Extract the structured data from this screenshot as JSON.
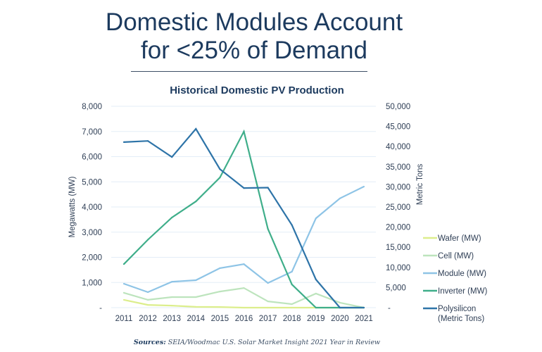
{
  "header": {
    "title_line1": "Domestic Modules Account",
    "title_line2": "for <25% of Demand"
  },
  "source": {
    "label": "Sources:",
    "text": "SEIA/Woodmac U.S. Solar Market Insight 2021 Year in Review"
  },
  "chart_data": {
    "type": "line",
    "title": "Historical Domestic PV Production",
    "xlabel": "",
    "ylabel": "Megawatts (MW)",
    "y2label": "Metric Tons",
    "x": [
      "2011",
      "2012",
      "2013",
      "2014",
      "2015",
      "2016",
      "2017",
      "2018",
      "2019",
      "2020",
      "2021"
    ],
    "ylim": [
      0,
      8000
    ],
    "y2lim": [
      0,
      50000
    ],
    "yticks": [
      0,
      1000,
      2000,
      3000,
      4000,
      5000,
      6000,
      7000,
      8000
    ],
    "ytick_labels": [
      "-",
      "1,000",
      "2,000",
      "3,000",
      "4,000",
      "5,000",
      "6,000",
      "7,000",
      "8,000"
    ],
    "y2ticks": [
      0,
      5000,
      10000,
      15000,
      20000,
      25000,
      30000,
      35000,
      40000,
      45000,
      50000
    ],
    "y2tick_labels": [
      "-",
      "5,000",
      "10,000",
      "15,000",
      "20,000",
      "25,000",
      "30,000",
      "35,000",
      "40,000",
      "45,000",
      "50,000"
    ],
    "grid": true,
    "legend_position": "right",
    "series": [
      {
        "name": "Wafer (MW)",
        "axis": "left",
        "color": "#dcee8c",
        "values": [
          310,
          110,
          80,
          30,
          25,
          0,
          0,
          0,
          0,
          0,
          0
        ]
      },
      {
        "name": "Cell (MW)",
        "axis": "left",
        "color": "#bde4bd",
        "values": [
          590,
          310,
          420,
          420,
          640,
          780,
          250,
          140,
          560,
          200,
          0
        ]
      },
      {
        "name": "Module (MW)",
        "axis": "left",
        "color": "#8ec4e6",
        "values": [
          950,
          615,
          1030,
          1090,
          1570,
          1730,
          980,
          1430,
          3550,
          4340,
          4810
        ]
      },
      {
        "name": "Inverter (MW)",
        "axis": "left",
        "color": "#3fae8a",
        "values": [
          1730,
          2700,
          3580,
          4220,
          5170,
          7000,
          3130,
          920,
          0,
          0,
          0
        ]
      },
      {
        "name": "Polysilicon\n(Metric Tons)",
        "axis": "right",
        "color": "#2e74a8",
        "values": [
          41100,
          41400,
          37400,
          44400,
          34400,
          29700,
          29800,
          20500,
          7000,
          0,
          0
        ]
      }
    ]
  }
}
